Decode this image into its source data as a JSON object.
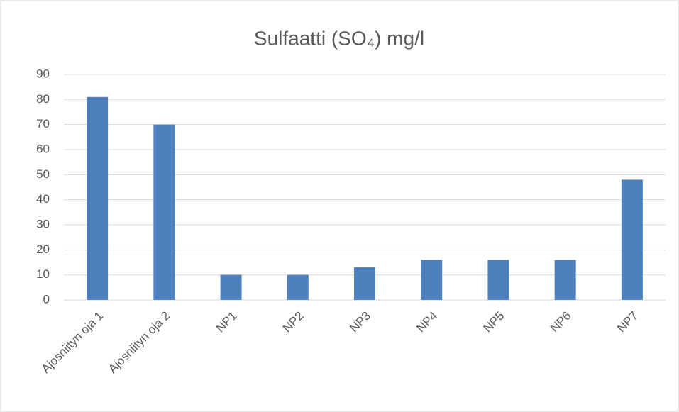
{
  "chart_data": {
    "type": "bar",
    "title": "Sulfaatti (SO₄) mg/l",
    "categories": [
      "Ajosniityn oja 1",
      "Ajosniityn oja 2",
      "NP1",
      "NP2",
      "NP3",
      "NP4",
      "NP5",
      "NP6",
      "NP7"
    ],
    "values": [
      81,
      70,
      10,
      10,
      13,
      16,
      16,
      16,
      48
    ],
    "color": "#4e80bd",
    "ylim": [
      0,
      90
    ],
    "yticks": [
      0,
      10,
      20,
      30,
      40,
      50,
      60,
      70,
      80,
      90
    ],
    "grid": true
  }
}
